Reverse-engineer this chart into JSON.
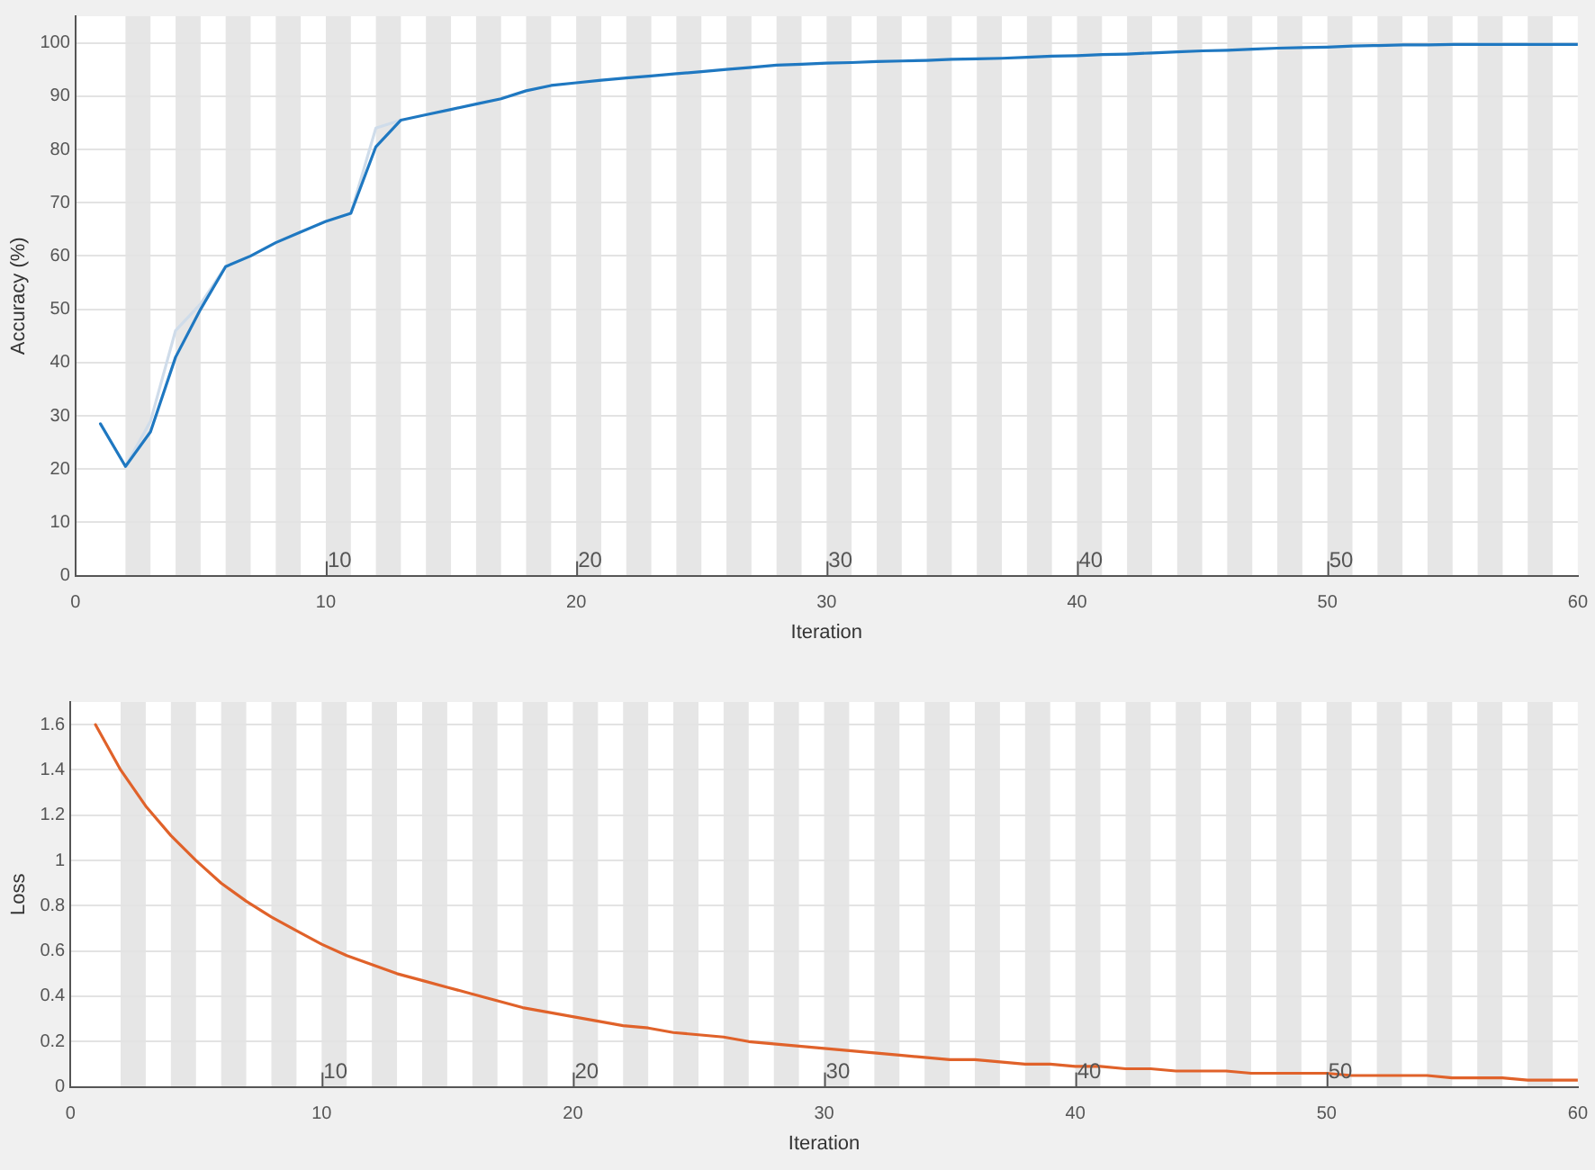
{
  "chart_data": [
    {
      "type": "line",
      "xlabel": "Iteration",
      "ylabel": "Accuracy (%)",
      "xlim": [
        0,
        60
      ],
      "xticks": [
        0,
        10,
        20,
        30,
        40,
        50,
        60
      ],
      "ylim": [
        0,
        105
      ],
      "yticks": [
        0,
        10,
        20,
        30,
        40,
        50,
        60,
        70,
        80,
        90,
        100
      ],
      "grid": "y",
      "legend": false,
      "marker": "none",
      "x": [
        1,
        2,
        3,
        4,
        5,
        6,
        7,
        8,
        9,
        10,
        11,
        12,
        13,
        14,
        15,
        16,
        17,
        18,
        19,
        20,
        21,
        22,
        23,
        24,
        25,
        26,
        27,
        28,
        29,
        30,
        31,
        32,
        33,
        34,
        35,
        36,
        37,
        38,
        39,
        40,
        41,
        42,
        43,
        44,
        45,
        46,
        47,
        48,
        49,
        50,
        51,
        52,
        53,
        54,
        55,
        56,
        57,
        58,
        59,
        60
      ],
      "series": [
        {
          "color": "#cfdcea",
          "values": [
            null,
            20.5,
            29,
            46,
            51,
            58,
            null,
            null,
            null,
            null,
            68,
            84,
            85.5,
            null,
            null,
            null,
            null,
            null,
            null,
            null,
            null,
            null,
            null,
            null,
            null,
            null,
            null,
            null,
            null,
            null,
            null,
            null,
            null,
            null,
            null,
            null,
            null,
            null,
            null,
            null,
            null,
            null,
            null,
            null,
            null,
            null,
            null,
            null,
            null,
            null,
            null,
            null,
            null,
            null,
            null,
            null,
            null,
            null,
            null,
            null
          ]
        },
        {
          "color": "#1f78c1",
          "values": [
            28.5,
            20.5,
            27,
            41,
            50,
            58,
            60,
            62.5,
            64.5,
            66.5,
            68,
            80.5,
            85.5,
            86.5,
            87.5,
            88.5,
            89.5,
            91,
            92,
            92.5,
            93,
            93.4,
            93.8,
            94.2,
            94.6,
            95,
            95.4,
            95.8,
            96,
            96.2,
            96.3,
            96.5,
            96.6,
            96.7,
            96.9,
            97,
            97.1,
            97.3,
            97.5,
            97.6,
            97.8,
            97.9,
            98.1,
            98.3,
            98.5,
            98.6,
            98.8,
            99,
            99.1,
            99.2,
            99.4,
            99.5,
            99.6,
            99.6,
            99.7,
            99.7,
            99.7,
            99.7,
            99.7,
            99.7
          ]
        }
      ],
      "bands": [
        {
          "axis": "x",
          "from": 2,
          "to": 3,
          "color": "#e6e6e6"
        },
        {
          "axis": "x",
          "from": 4,
          "to": 5,
          "color": "#e6e6e6"
        },
        {
          "axis": "x",
          "from": 6,
          "to": 7,
          "color": "#e6e6e6"
        },
        {
          "axis": "x",
          "from": 8,
          "to": 9,
          "color": "#e6e6e6"
        },
        {
          "axis": "x",
          "from": 10,
          "to": 11,
          "color": "#e6e6e6"
        },
        {
          "axis": "x",
          "from": 12,
          "to": 13,
          "color": "#e6e6e6"
        },
        {
          "axis": "x",
          "from": 14,
          "to": 15,
          "color": "#e6e6e6"
        },
        {
          "axis": "x",
          "from": 16,
          "to": 17,
          "color": "#e6e6e6"
        },
        {
          "axis": "x",
          "from": 18,
          "to": 19,
          "color": "#e6e6e6"
        },
        {
          "axis": "x",
          "from": 20,
          "to": 21,
          "color": "#e6e6e6"
        },
        {
          "axis": "x",
          "from": 22,
          "to": 23,
          "color": "#e6e6e6"
        },
        {
          "axis": "x",
          "from": 24,
          "to": 25,
          "color": "#e6e6e6"
        },
        {
          "axis": "x",
          "from": 26,
          "to": 27,
          "color": "#e6e6e6"
        },
        {
          "axis": "x",
          "from": 28,
          "to": 29,
          "color": "#e6e6e6"
        },
        {
          "axis": "x",
          "from": 30,
          "to": 31,
          "color": "#e6e6e6"
        },
        {
          "axis": "x",
          "from": 32,
          "to": 33,
          "color": "#e6e6e6"
        },
        {
          "axis": "x",
          "from": 34,
          "to": 35,
          "color": "#e6e6e6"
        },
        {
          "axis": "x",
          "from": 36,
          "to": 37,
          "color": "#e6e6e6"
        },
        {
          "axis": "x",
          "from": 38,
          "to": 39,
          "color": "#e6e6e6"
        },
        {
          "axis": "x",
          "from": 40,
          "to": 41,
          "color": "#e6e6e6"
        },
        {
          "axis": "x",
          "from": 42,
          "to": 43,
          "color": "#e6e6e6"
        },
        {
          "axis": "x",
          "from": 44,
          "to": 45,
          "color": "#e6e6e6"
        },
        {
          "axis": "x",
          "from": 46,
          "to": 47,
          "color": "#e6e6e6"
        },
        {
          "axis": "x",
          "from": 48,
          "to": 49,
          "color": "#e6e6e6"
        },
        {
          "axis": "x",
          "from": 50,
          "to": 51,
          "color": "#e6e6e6"
        },
        {
          "axis": "x",
          "from": 52,
          "to": 53,
          "color": "#e6e6e6"
        },
        {
          "axis": "x",
          "from": 54,
          "to": 55,
          "color": "#e6e6e6"
        },
        {
          "axis": "x",
          "from": 56,
          "to": 57,
          "color": "#e6e6e6"
        },
        {
          "axis": "x",
          "from": 58,
          "to": 59,
          "color": "#e6e6e6"
        }
      ],
      "annotations": [
        {
          "text": "10",
          "x": 10,
          "y": 0
        },
        {
          "text": "20",
          "x": 20,
          "y": 0
        },
        {
          "text": "30",
          "x": 30,
          "y": 0
        },
        {
          "text": "40",
          "x": 40,
          "y": 0
        },
        {
          "text": "50",
          "x": 50,
          "y": 0
        }
      ]
    },
    {
      "type": "line",
      "xlabel": "Iteration",
      "ylabel": "Loss",
      "xlim": [
        0,
        60
      ],
      "xticks": [
        0,
        10,
        20,
        30,
        40,
        50,
        60
      ],
      "ylim": [
        0,
        1.7
      ],
      "yticks": [
        0,
        0.2,
        0.4,
        0.6,
        0.8,
        1,
        1.2,
        1.4,
        1.6
      ],
      "grid": "y",
      "legend": false,
      "marker": "none",
      "x": [
        1,
        2,
        3,
        4,
        5,
        6,
        7,
        8,
        9,
        10,
        11,
        12,
        13,
        14,
        15,
        16,
        17,
        18,
        19,
        20,
        21,
        22,
        23,
        24,
        25,
        26,
        27,
        28,
        29,
        30,
        31,
        32,
        33,
        34,
        35,
        36,
        37,
        38,
        39,
        40,
        41,
        42,
        43,
        44,
        45,
        46,
        47,
        48,
        49,
        50,
        51,
        52,
        53,
        54,
        55,
        56,
        57,
        58,
        59,
        60
      ],
      "series": [
        {
          "color": "#e0622a",
          "values": [
            1.6,
            1.4,
            1.24,
            1.11,
            1.0,
            0.9,
            0.82,
            0.75,
            0.69,
            0.63,
            0.58,
            0.54,
            0.5,
            0.47,
            0.44,
            0.41,
            0.38,
            0.35,
            0.33,
            0.31,
            0.29,
            0.27,
            0.26,
            0.24,
            0.23,
            0.22,
            0.2,
            0.19,
            0.18,
            0.17,
            0.16,
            0.15,
            0.14,
            0.13,
            0.12,
            0.12,
            0.11,
            0.1,
            0.1,
            0.09,
            0.09,
            0.08,
            0.08,
            0.07,
            0.07,
            0.07,
            0.06,
            0.06,
            0.06,
            0.06,
            0.05,
            0.05,
            0.05,
            0.05,
            0.04,
            0.04,
            0.04,
            0.03,
            0.03,
            0.03
          ]
        }
      ],
      "bands": [
        {
          "axis": "x",
          "from": 2,
          "to": 3,
          "color": "#e6e6e6"
        },
        {
          "axis": "x",
          "from": 4,
          "to": 5,
          "color": "#e6e6e6"
        },
        {
          "axis": "x",
          "from": 6,
          "to": 7,
          "color": "#e6e6e6"
        },
        {
          "axis": "x",
          "from": 8,
          "to": 9,
          "color": "#e6e6e6"
        },
        {
          "axis": "x",
          "from": 10,
          "to": 11,
          "color": "#e6e6e6"
        },
        {
          "axis": "x",
          "from": 12,
          "to": 13,
          "color": "#e6e6e6"
        },
        {
          "axis": "x",
          "from": 14,
          "to": 15,
          "color": "#e6e6e6"
        },
        {
          "axis": "x",
          "from": 16,
          "to": 17,
          "color": "#e6e6e6"
        },
        {
          "axis": "x",
          "from": 18,
          "to": 19,
          "color": "#e6e6e6"
        },
        {
          "axis": "x",
          "from": 20,
          "to": 21,
          "color": "#e6e6e6"
        },
        {
          "axis": "x",
          "from": 22,
          "to": 23,
          "color": "#e6e6e6"
        },
        {
          "axis": "x",
          "from": 24,
          "to": 25,
          "color": "#e6e6e6"
        },
        {
          "axis": "x",
          "from": 26,
          "to": 27,
          "color": "#e6e6e6"
        },
        {
          "axis": "x",
          "from": 28,
          "to": 29,
          "color": "#e6e6e6"
        },
        {
          "axis": "x",
          "from": 30,
          "to": 31,
          "color": "#e6e6e6"
        },
        {
          "axis": "x",
          "from": 32,
          "to": 33,
          "color": "#e6e6e6"
        },
        {
          "axis": "x",
          "from": 34,
          "to": 35,
          "color": "#e6e6e6"
        },
        {
          "axis": "x",
          "from": 36,
          "to": 37,
          "color": "#e6e6e6"
        },
        {
          "axis": "x",
          "from": 38,
          "to": 39,
          "color": "#e6e6e6"
        },
        {
          "axis": "x",
          "from": 40,
          "to": 41,
          "color": "#e6e6e6"
        },
        {
          "axis": "x",
          "from": 42,
          "to": 43,
          "color": "#e6e6e6"
        },
        {
          "axis": "x",
          "from": 44,
          "to": 45,
          "color": "#e6e6e6"
        },
        {
          "axis": "x",
          "from": 46,
          "to": 47,
          "color": "#e6e6e6"
        },
        {
          "axis": "x",
          "from": 48,
          "to": 49,
          "color": "#e6e6e6"
        },
        {
          "axis": "x",
          "from": 50,
          "to": 51,
          "color": "#e6e6e6"
        },
        {
          "axis": "x",
          "from": 52,
          "to": 53,
          "color": "#e6e6e6"
        },
        {
          "axis": "x",
          "from": 54,
          "to": 55,
          "color": "#e6e6e6"
        },
        {
          "axis": "x",
          "from": 56,
          "to": 57,
          "color": "#e6e6e6"
        },
        {
          "axis": "x",
          "from": 58,
          "to": 59,
          "color": "#e6e6e6"
        }
      ],
      "annotations": [
        {
          "text": "10",
          "x": 10,
          "y": 0
        },
        {
          "text": "20",
          "x": 20,
          "y": 0
        },
        {
          "text": "30",
          "x": 30,
          "y": 0
        },
        {
          "text": "40",
          "x": 40,
          "y": 0
        },
        {
          "text": "50",
          "x": 50,
          "y": 0
        }
      ]
    }
  ]
}
